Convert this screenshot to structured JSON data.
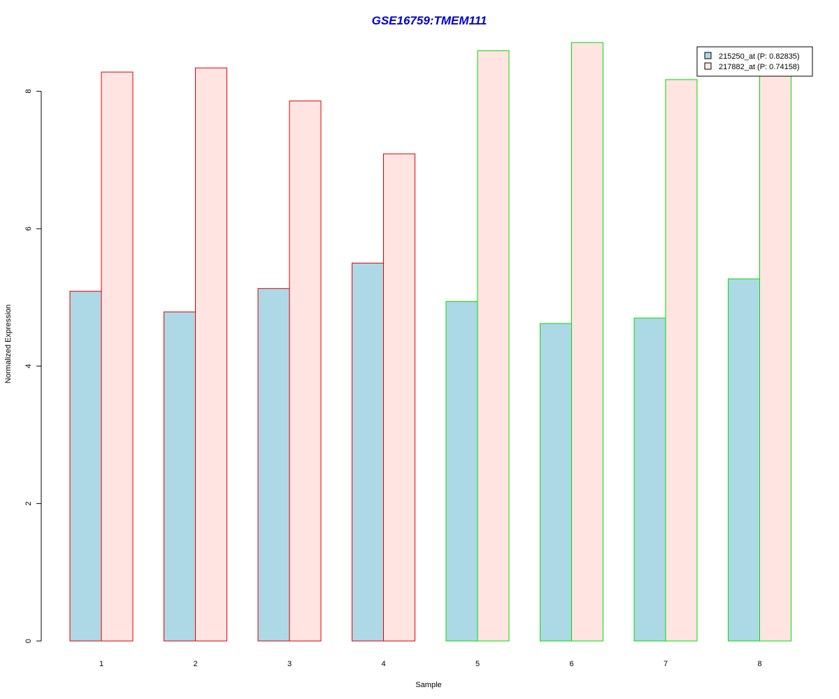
{
  "chart_data": {
    "type": "bar",
    "title": "GSE16759:TMEM111",
    "xlabel": "Sample",
    "ylabel": "Normalized Expression",
    "categories": [
      "1",
      "2",
      "3",
      "4",
      "5",
      "6",
      "7",
      "8"
    ],
    "ylim": [
      0,
      8.75
    ],
    "yticks": [
      "0",
      "2",
      "4",
      "6",
      "8"
    ],
    "series": [
      {
        "name": "215250_at (P: 0.82835)",
        "fill": "#add8e6",
        "values": [
          5.09,
          4.79,
          5.13,
          5.5,
          4.94,
          4.62,
          4.7,
          5.27
        ]
      },
      {
        "name": "217882_at (P: 0.74158)",
        "fill": "#ffe4e1",
        "values": [
          8.28,
          8.34,
          7.86,
          7.09,
          8.59,
          8.71,
          8.17,
          8.24
        ]
      }
    ],
    "group_border_colors": [
      "#dd0000",
      "#dd0000",
      "#dd0000",
      "#dd0000",
      "#00dd00",
      "#00dd00",
      "#00dd00",
      "#00dd00"
    ],
    "legend_position": "top-right",
    "grid": false
  }
}
